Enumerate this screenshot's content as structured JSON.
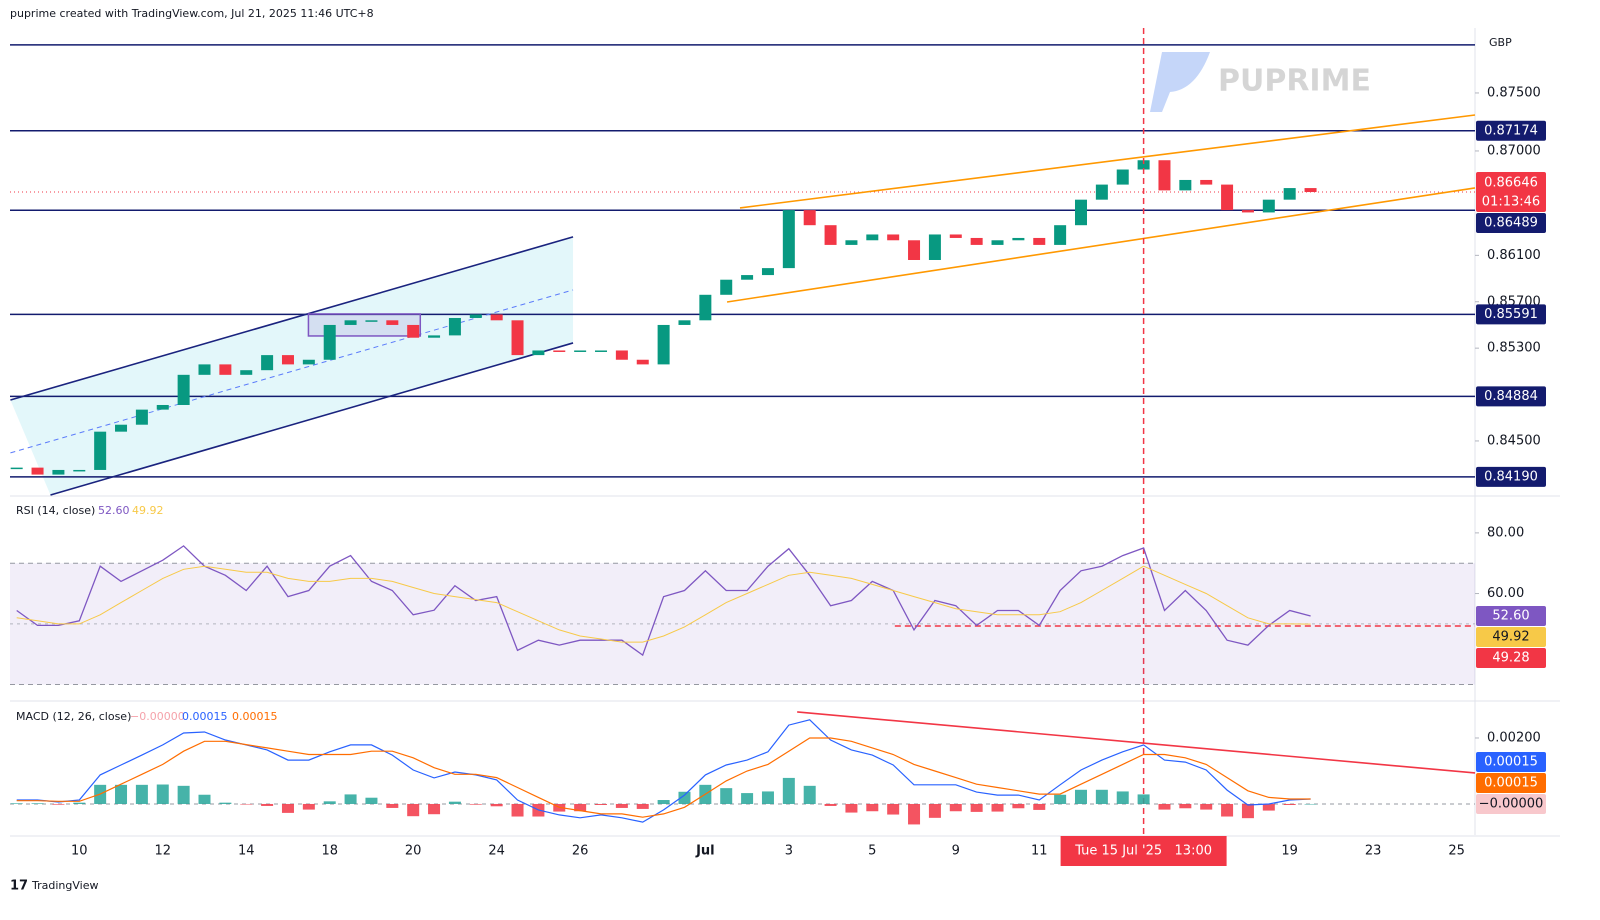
{
  "header": "puprime created with TradingView.com, Jul 21, 2025 11:46 UTC+8",
  "brand": "PUPRIME",
  "currency": "GBP",
  "footer": "TradingView",
  "chart_data": [
    {
      "type": "candlestick",
      "x": [
        -1.5,
        -1,
        -0.5,
        0,
        0.5,
        1,
        1.5,
        2,
        2.5,
        3,
        3.5,
        4,
        4.5,
        5,
        5.5,
        6,
        6.5,
        7,
        7.5,
        8,
        8.5,
        9,
        9.5,
        10,
        10.5,
        11,
        11.5,
        12,
        12.5,
        13,
        13.5,
        14,
        14.5,
        15,
        15.5,
        16,
        16.5,
        17,
        17.5,
        18,
        18.5,
        19,
        19.5,
        20,
        20.5,
        21,
        21.5,
        22,
        22.5,
        23,
        23.5,
        24,
        24.5,
        25,
        25.5,
        26,
        26.5,
        27,
        27.5,
        28,
        28.5,
        29,
        29.5
      ],
      "values": [
        0.8427,
        0.8421,
        0.8425,
        0.8425,
        0.8458,
        0.8464,
        0.8477,
        0.8481,
        0.8507,
        0.8516,
        0.8507,
        0.8511,
        0.8524,
        0.8516,
        0.852,
        0.855,
        0.8554,
        0.8554,
        0.855,
        0.8539,
        0.8541,
        0.8556,
        0.8559,
        0.8554,
        0.8524,
        0.8528,
        0.8527,
        0.8528,
        0.8528,
        0.852,
        0.8516,
        0.855,
        0.8554,
        0.8576,
        0.8589,
        0.8593,
        0.8599,
        0.8649,
        0.8636,
        0.8619,
        0.8623,
        0.8628,
        0.8623,
        0.8606,
        0.8628,
        0.8625,
        0.8619,
        0.8623,
        0.8625,
        0.8619,
        0.8636,
        0.8658,
        0.8671,
        0.8684,
        0.8692,
        0.8666,
        0.8675,
        0.8671,
        0.8649,
        0.8647,
        0.8658,
        0.8668,
        0.86646
      ],
      "color_up": "#089981",
      "color_down": "#f23645",
      "xlim": [
        -1.66,
        33.44
      ],
      "xticks": [
        {
          "value": 0,
          "label": "10"
        },
        {
          "value": 2,
          "label": "12"
        },
        {
          "value": 4,
          "label": "14"
        },
        {
          "value": 6,
          "label": "18"
        },
        {
          "value": 8,
          "label": "20"
        },
        {
          "value": 10,
          "label": "24"
        },
        {
          "value": 12,
          "label": "26"
        },
        {
          "value": 15,
          "label": "Jul"
        },
        {
          "value": 17,
          "label": "3"
        },
        {
          "value": 19,
          "label": "5"
        },
        {
          "value": 21,
          "label": "9"
        },
        {
          "value": 23,
          "label": "11"
        },
        {
          "value": 29,
          "label": "19"
        },
        {
          "value": 31,
          "label": "23"
        },
        {
          "value": 33,
          "label": "25"
        }
      ],
      "marker": {
        "value": 25.5,
        "label": "Tue 15 Jul '25   13:00"
      },
      "ylim": [
        0.84034,
        0.8806
      ],
      "yticks": [
        {
          "value": 0.875,
          "label": "0.87500"
        },
        {
          "value": 0.87,
          "label": "0.87000"
        },
        {
          "value": 0.861,
          "label": "0.86100"
        },
        {
          "value": 0.857,
          "label": "0.85700"
        },
        {
          "value": 0.853,
          "label": "0.85300"
        },
        {
          "value": 0.845,
          "label": "0.84500"
        }
      ],
      "frame_line": 0.87914,
      "levels": [
        0.87174,
        0.86489,
        0.85591,
        0.84884,
        {
          "value": 0.8419,
          "label": "0.84190"
        }
      ],
      "level_color": "#131b6e",
      "last_price": {
        "value": 0.86646,
        "label": "0.86646",
        "countdown": "01:13:46",
        "color": "#f23645"
      },
      "trendlines": [
        {
          "x": [
            -1.65,
            11.83
          ],
          "y": [
            0.84853,
            0.86259
          ],
          "color": "#1a237e"
        },
        {
          "x": [
            -0.69,
            11.83
          ],
          "y": [
            0.84034,
            0.85345
          ],
          "color": "#1a237e"
        },
        {
          "x": [
            -1.65,
            11.83
          ],
          "y": [
            0.84397,
            0.85802
          ],
          "color": "#5c7cfa",
          "dashed": true
        },
        {
          "x": [
            15.83,
            33.44
          ],
          "y": [
            0.86509,
            0.8731
          ],
          "color": "#ff9800"
        },
        {
          "x": [
            15.52,
            33.44
          ],
          "y": [
            0.85698,
            0.86681
          ],
          "color": "#ff9800"
        }
      ],
      "channel_fill": "#e3f7fa",
      "box": {
        "x": [
          5.49,
          8.17
        ],
        "y": [
          0.85405,
          0.85595
        ],
        "color": "#7e57c2"
      }
    },
    {
      "type": "line",
      "title": "RSI (14, close)",
      "series": [
        {
          "color": "#7e57c2",
          "value_label": "52.60",
          "values": [
            54.4,
            49.5,
            49.5,
            51,
            69,
            64,
            67.5,
            71,
            75.7,
            69,
            66,
            61,
            69,
            59,
            61,
            69,
            72.5,
            64,
            61,
            53,
            54.5,
            62.6,
            57.7,
            59,
            41.3,
            44.6,
            43,
            44.6,
            44.6,
            44.6,
            39.7,
            59,
            61,
            67.5,
            61,
            61,
            69,
            74.8,
            66,
            56,
            57.7,
            64,
            61,
            48,
            57.7,
            56,
            49.5,
            54.4,
            54.4,
            49.5,
            61,
            67.5,
            69,
            72.5,
            75,
            54.4,
            61,
            54.4,
            44.6,
            43,
            49.5,
            54.4,
            52.6
          ]
        },
        {
          "color": "#f7c948",
          "value_label": "49.92",
          "values": [
            52,
            51,
            50,
            50,
            53,
            57,
            61,
            65,
            68,
            69,
            68,
            67,
            67,
            65,
            64,
            64,
            65,
            65,
            64,
            62,
            60,
            59,
            58,
            57,
            54,
            51,
            48,
            46,
            45,
            44,
            44,
            46,
            49,
            53,
            57,
            60,
            63,
            66,
            67,
            66,
            65,
            63,
            61,
            59,
            57,
            55,
            54,
            53,
            53,
            53,
            54,
            57,
            61,
            65,
            69,
            66,
            63,
            60,
            56,
            52,
            50,
            50,
            49.92
          ]
        }
      ],
      "ylim": [
        24.9,
        91.5
      ],
      "yticks": [
        {
          "value": 80,
          "label": "80.00"
        },
        {
          "value": 60,
          "label": "60.00"
        }
      ],
      "bands": [
        70,
        30
      ],
      "midline": 50,
      "level": {
        "value": 49.28,
        "label": "49.28",
        "from": 19.54,
        "color": "#f23645"
      }
    },
    {
      "type": "macd",
      "title": "MACD (12, 26, close)",
      "histogram": {
        "color_up": "#26a69a",
        "color_down": "#f23645",
        "value_label": "−0.00000",
        "label_color": "#f8c8cc",
        "values": [
          2e-05,
          2e-05,
          -2e-05,
          4e-05,
          0.00058,
          0.00058,
          0.00058,
          0.00059,
          0.00055,
          0.00028,
          4e-05,
          -1e-05,
          -6e-05,
          -0.00027,
          -0.00017,
          8e-05,
          0.00029,
          0.00019,
          -0.00012,
          -0.00037,
          -0.00031,
          7e-05,
          -2e-05,
          -7e-05,
          -0.00038,
          -0.00038,
          -0.00023,
          -0.00022,
          -3e-05,
          -0.00012,
          -0.00015,
          0.00012,
          0.00037,
          0.00058,
          0.00048,
          0.00033,
          0.00038,
          0.00079,
          0.00055,
          -6e-05,
          -0.00026,
          -0.00022,
          -0.00032,
          -0.00062,
          -0.00042,
          -0.00022,
          -0.00024,
          -0.00023,
          -0.00013,
          -0.00018,
          0.00028,
          0.00043,
          0.00043,
          0.00038,
          0.00029,
          -0.00017,
          -0.00013,
          -0.00017,
          -0.00038,
          -0.00043,
          -0.0002,
          -3e-05,
          0
        ]
      },
      "series": [
        {
          "color": "#2962ff",
          "value_label": "0.00015",
          "values": [
            0.00012,
            0.00012,
            6e-05,
            0.00012,
            0.00088,
            0.00118,
            0.00148,
            0.00179,
            0.00215,
            0.00218,
            0.00194,
            0.00179,
            0.00164,
            0.00133,
            0.00133,
            0.00158,
            0.00179,
            0.00179,
            0.00148,
            0.00103,
            0.00079,
            0.00097,
            0.00088,
            0.00073,
            0.00012,
            -0.00018,
            -0.00033,
            -0.00042,
            -0.00033,
            -0.00042,
            -0.00055,
            -0.00018,
            0.00027,
            0.00088,
            0.00118,
            0.00133,
            0.00158,
            0.00239,
            0.00255,
            0.00194,
            0.00164,
            0.00148,
            0.00118,
            0.00058,
            0.00058,
            0.00058,
            0.00036,
            0.00027,
            0.00027,
            0.00012,
            0.00058,
            0.00103,
            0.00133,
            0.00158,
            0.00179,
            0.00133,
            0.00127,
            0.00103,
            0.00042,
            -3e-05,
            0,
            0.00012,
            0.00015
          ]
        },
        {
          "color": "#ff6d00",
          "value_label": "0.00015",
          "values": [
            0.0001,
            0.0001,
            8e-05,
            8e-05,
            0.0003,
            0.0006,
            0.0009,
            0.0012,
            0.0016,
            0.0019,
            0.0019,
            0.0018,
            0.0017,
            0.0016,
            0.0015,
            0.0015,
            0.0015,
            0.0016,
            0.0016,
            0.0014,
            0.0011,
            0.0009,
            0.0009,
            0.0008,
            0.0005,
            0.0002,
            -0.0001,
            -0.0002,
            -0.0003,
            -0.0003,
            -0.0004,
            -0.0003,
            -0.0001,
            0.0003,
            0.0007,
            0.001,
            0.0012,
            0.0016,
            0.002,
            0.002,
            0.0019,
            0.0017,
            0.0015,
            0.0012,
            0.001,
            0.0008,
            0.0006,
            0.0005,
            0.0004,
            0.0003,
            0.0003,
            0.0006,
            0.0009,
            0.0012,
            0.0015,
            0.0015,
            0.0014,
            0.0012,
            0.0008,
            0.0004,
            0.0002,
            0.00015,
            0.00015
          ]
        }
      ],
      "ylim": [
        -0.00094,
        0.00306
      ],
      "yticks": [
        {
          "value": 0.002,
          "label": "0.00200"
        }
      ],
      "zero": 0,
      "trendline": {
        "x": [
          17.2,
          33.44
        ],
        "y": [
          0.00279,
          0.00094
        ],
        "color": "#f23645"
      }
    }
  ]
}
